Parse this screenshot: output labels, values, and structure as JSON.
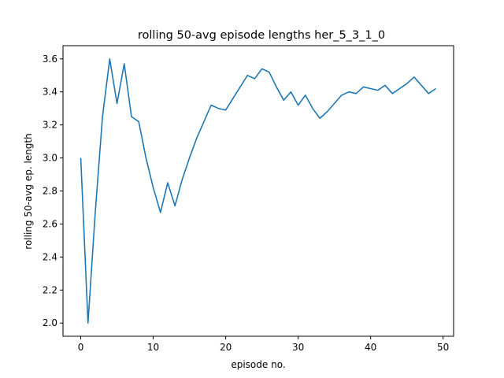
{
  "chart_data": {
    "type": "line",
    "title": "rolling 50-avg episode lengths her_5_3_1_0",
    "xlabel": "episode no.",
    "ylabel": "rolling 50-avg ep. length",
    "xlim": [
      -2.45,
      51.45
    ],
    "ylim": [
      1.92,
      3.68
    ],
    "grid": false,
    "line_color": "#1f77b4",
    "x_ticks": [
      0,
      10,
      20,
      30,
      40,
      50
    ],
    "y_ticks": [
      2.0,
      2.2,
      2.4,
      2.6,
      2.8,
      3.0,
      3.2,
      3.4,
      3.6
    ],
    "series": [
      {
        "x": [
          0,
          1,
          2,
          3,
          4,
          5,
          6,
          7,
          8,
          9,
          10,
          11,
          12,
          13,
          14,
          15,
          16,
          17,
          18,
          19,
          20,
          21,
          22,
          23,
          24,
          25,
          26,
          27,
          28,
          29,
          30,
          31,
          32,
          33,
          34,
          35,
          36,
          37,
          38,
          39,
          40,
          41,
          42,
          43,
          44,
          45,
          46,
          47,
          48,
          49
        ],
        "values": [
          3.0,
          2.0,
          2.67,
          3.25,
          3.6,
          3.33,
          3.57,
          3.25,
          3.22,
          3.0,
          2.82,
          2.67,
          2.85,
          2.71,
          2.87,
          3.0,
          3.12,
          3.22,
          3.32,
          3.3,
          3.29,
          3.36,
          3.43,
          3.5,
          3.48,
          3.54,
          3.52,
          3.43,
          3.35,
          3.4,
          3.32,
          3.38,
          3.3,
          3.24,
          3.28,
          3.33,
          3.38,
          3.4,
          3.39,
          3.43,
          3.42,
          3.41,
          3.44,
          3.39,
          3.42,
          3.45,
          3.49,
          3.44,
          3.39,
          3.42
        ]
      }
    ]
  }
}
